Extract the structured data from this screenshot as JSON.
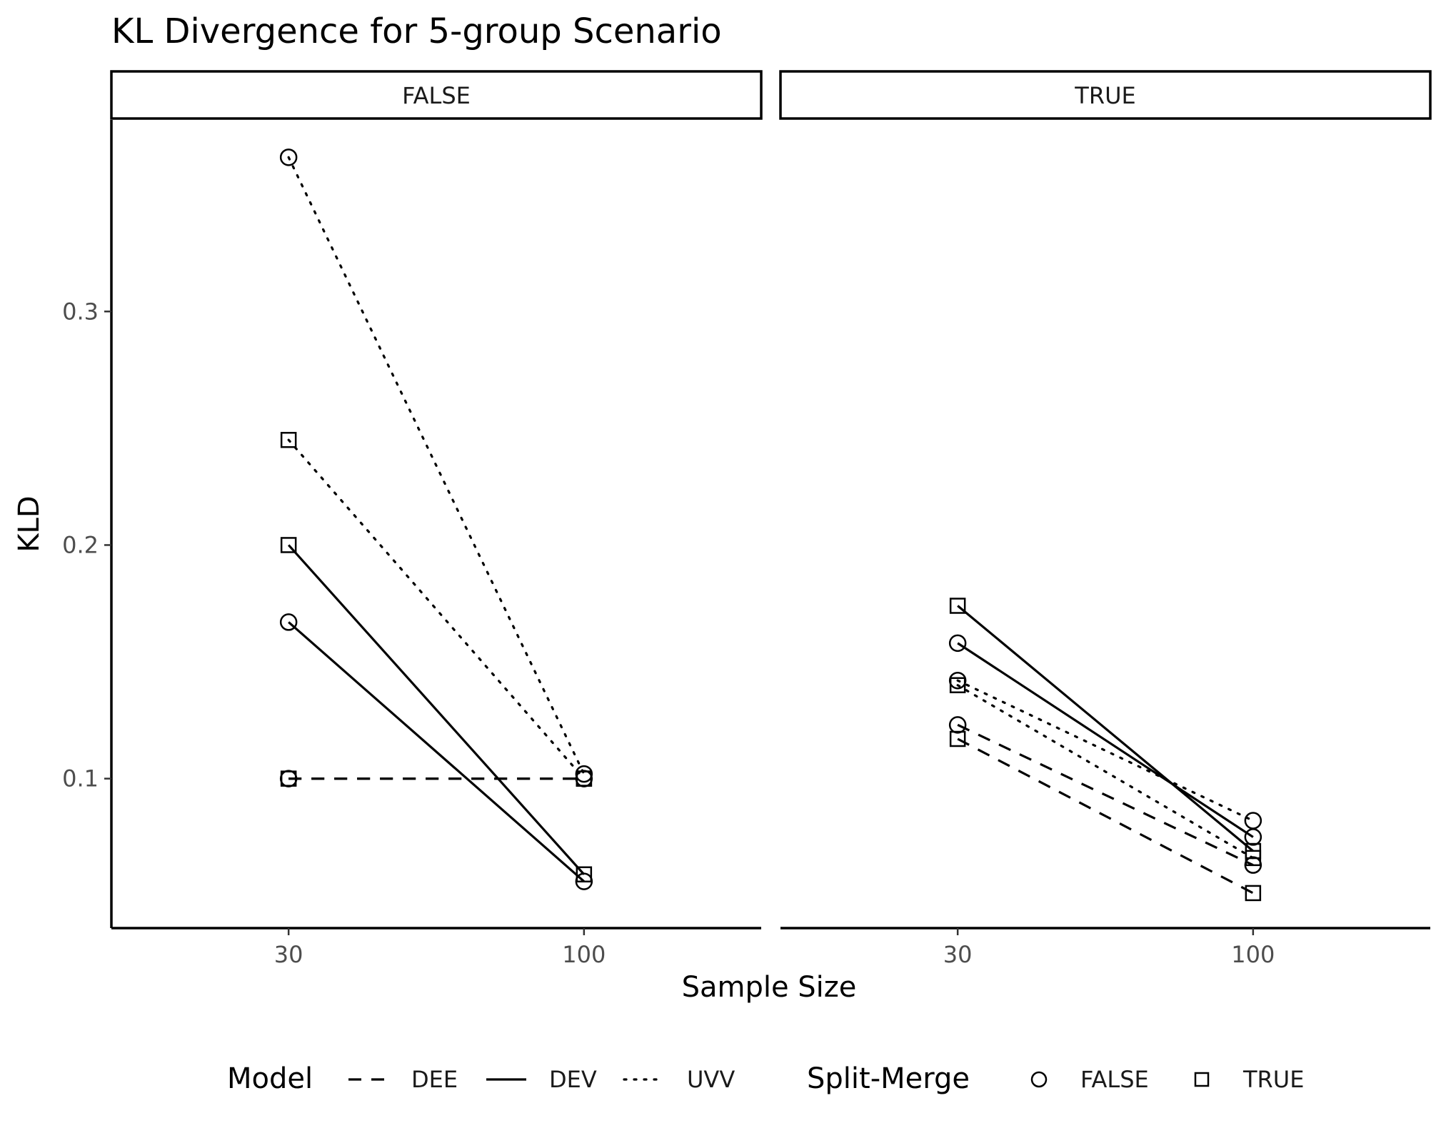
{
  "chart_data": {
    "type": "line",
    "title": "KL Divergence for 5-group Scenario",
    "xlabel": "Sample Size",
    "ylabel": "KLD",
    "x_categories": [
      "30",
      "100"
    ],
    "y_ticks": [
      0.1,
      0.2,
      0.3
    ],
    "y_tick_labels": [
      "0.1",
      "0.2",
      "0.3"
    ],
    "ylim": [
      0.036,
      0.382
    ],
    "facet_variable": "Split-Merge (panel)",
    "panels": [
      {
        "label": "FALSE",
        "series": [
          {
            "model": "DEE",
            "split_merge": "FALSE",
            "values": [
              0.1,
              0.1
            ]
          },
          {
            "model": "DEE",
            "split_merge": "TRUE",
            "values": [
              0.1,
              0.1
            ]
          },
          {
            "model": "DEV",
            "split_merge": "FALSE",
            "values": [
              0.167,
              0.056
            ]
          },
          {
            "model": "DEV",
            "split_merge": "TRUE",
            "values": [
              0.2,
              0.059
            ]
          },
          {
            "model": "UVV",
            "split_merge": "FALSE",
            "values": [
              0.366,
              0.102
            ]
          },
          {
            "model": "UVV",
            "split_merge": "TRUE",
            "values": [
              0.245,
              0.1
            ]
          }
        ]
      },
      {
        "label": "TRUE",
        "series": [
          {
            "model": "DEE",
            "split_merge": "FALSE",
            "values": [
              0.123,
              0.063
            ]
          },
          {
            "model": "DEE",
            "split_merge": "TRUE",
            "values": [
              0.117,
              0.051
            ]
          },
          {
            "model": "DEV",
            "split_merge": "FALSE",
            "values": [
              0.158,
              0.075
            ]
          },
          {
            "model": "DEV",
            "split_merge": "TRUE",
            "values": [
              0.174,
              0.069
            ]
          },
          {
            "model": "UVV",
            "split_merge": "FALSE",
            "values": [
              0.142,
              0.082
            ]
          },
          {
            "model": "UVV",
            "split_merge": "TRUE",
            "values": [
              0.14,
              0.066
            ]
          }
        ]
      }
    ],
    "legend": {
      "position": "bottom",
      "model": {
        "title": "Model",
        "items": [
          {
            "label": "DEE",
            "linetype": "dashed"
          },
          {
            "label": "DEV",
            "linetype": "solid"
          },
          {
            "label": "UVV",
            "linetype": "dotted"
          }
        ]
      },
      "split_merge": {
        "title": "Split-Merge",
        "items": [
          {
            "label": "FALSE",
            "shape": "circle"
          },
          {
            "label": "TRUE",
            "shape": "square"
          }
        ]
      }
    }
  }
}
